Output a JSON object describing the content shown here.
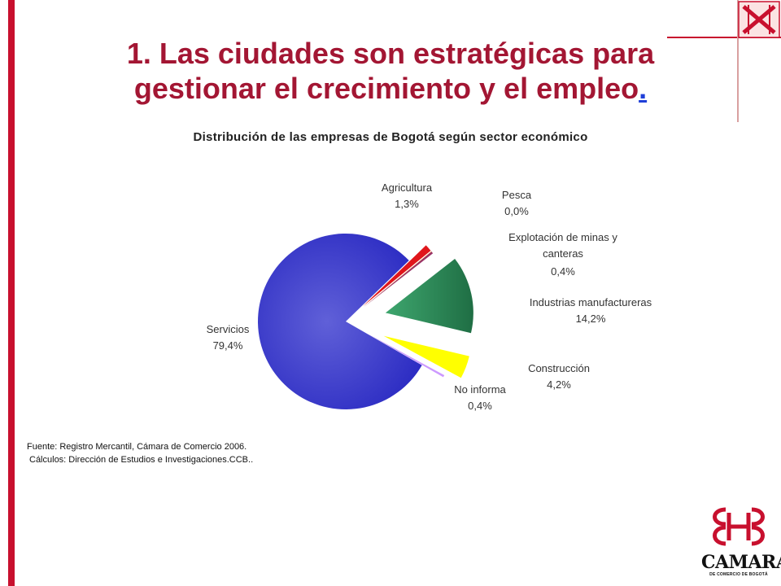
{
  "slide": {
    "title_main": "1. Las ciudades son estratégicas para gestionar el crecimiento y el empleo",
    "title_link": ".",
    "source_line1": "Fuente: Registro Mercantil, Cámara de Comercio 2006.",
    "source_line2": "Cálculos: Dirección de Estudios e Investigaciones.CCB..",
    "logo_text": "CAMARA",
    "logo_subtext": "DE COMERCIO DE BOGOTÁ"
  },
  "chart_data": {
    "type": "pie",
    "title": "Distribución de las empresas de Bogotá según sector económico",
    "slices": [
      {
        "label": "Agricultura",
        "value_label": "1,3%",
        "value": 1.3,
        "color": "#e0161b"
      },
      {
        "label": "Pesca",
        "value_label": "0,0%",
        "value": 0.0,
        "color": "#ff9900"
      },
      {
        "label": "Explotación de minas y canteras",
        "value_label": "0,4%",
        "value": 0.4,
        "color": "#993366"
      },
      {
        "label": "Industrias manufactureras",
        "value_label": "14,2%",
        "value": 14.2,
        "color": "#2e8b57"
      },
      {
        "label": "Construcción",
        "value_label": "4,2%",
        "value": 4.2,
        "color": "#ffff00"
      },
      {
        "label": "No informa",
        "value_label": "0,4%",
        "value": 0.4,
        "color": "#cc99ff"
      },
      {
        "label": "Servicios",
        "value_label": "79,4%",
        "value": 79.4,
        "color": "#3f3fcf"
      }
    ],
    "legend": "none",
    "exploded": true
  }
}
